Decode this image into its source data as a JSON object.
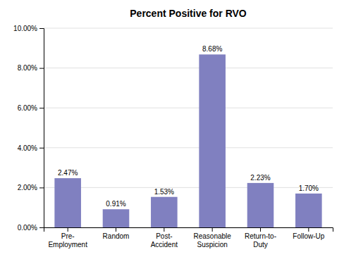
{
  "chart_data": {
    "type": "bar",
    "title": "Percent Positive for RVO",
    "categories": [
      "Pre-\nEmployment",
      "Random",
      "Post-\nAccident",
      "Reasonable\nSuspicion",
      "Return-to-\nDuty",
      "Follow-Up"
    ],
    "values": [
      2.47,
      0.91,
      1.53,
      8.68,
      2.23,
      1.7
    ],
    "value_labels": [
      "2.47%",
      "0.91%",
      "1.53%",
      "8.68%",
      "2.23%",
      "1.70%"
    ],
    "data_labels": true,
    "color": "#8080C0",
    "ylim": [
      0,
      10.0
    ],
    "yticks": [
      {
        "value": 0.0,
        "label": "0.00%"
      },
      {
        "value": 2.0,
        "label": "2.00%"
      },
      {
        "value": 4.0,
        "label": "4.00%"
      },
      {
        "value": 6.0,
        "label": "6.00%"
      },
      {
        "value": 8.0,
        "label": "8.00%"
      },
      {
        "value": 10.0,
        "label": "10.00%"
      }
    ],
    "grid": true
  }
}
